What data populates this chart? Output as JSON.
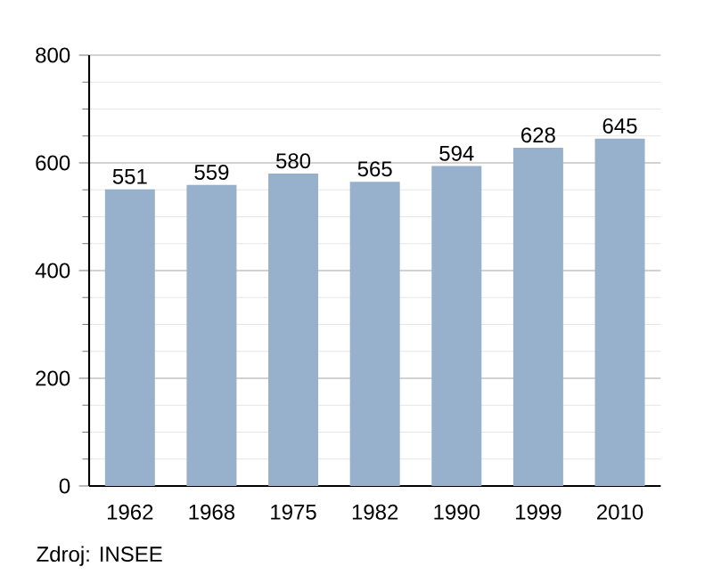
{
  "chart_data": {
    "type": "bar",
    "categories": [
      "1962",
      "1968",
      "1975",
      "1982",
      "1990",
      "1999",
      "2010"
    ],
    "values": [
      551,
      559,
      580,
      565,
      594,
      628,
      645
    ],
    "color": "#97b1cc",
    "ylim": [
      0,
      800
    ],
    "yticks": [
      0,
      200,
      400,
      600,
      800
    ],
    "grid": "y",
    "data_labels": true,
    "annotations": [
      "Zdroj: INSEE"
    ]
  }
}
